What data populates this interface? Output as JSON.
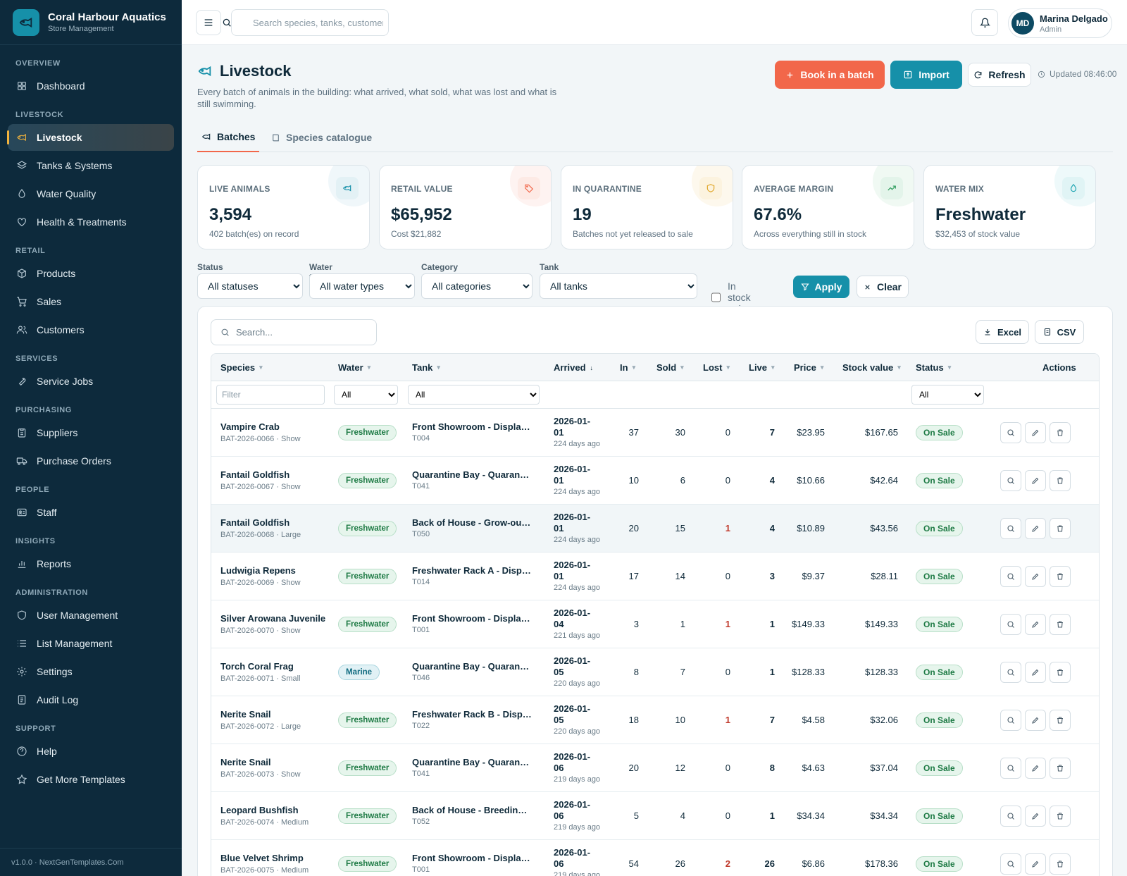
{
  "app": {
    "title": "Coral Harbour Aquatics",
    "subtitle": "Store Management",
    "version": "v1.0.0 · NextGenTemplates.Com"
  },
  "nav": {
    "sections": [
      {
        "label": "OVERVIEW",
        "items": [
          {
            "label": "Dashboard",
            "icon": "grid-icon"
          }
        ]
      },
      {
        "label": "LIVESTOCK",
        "items": [
          {
            "label": "Livestock",
            "icon": "fish-icon",
            "active": true
          },
          {
            "label": "Tanks & Systems",
            "icon": "layers-icon"
          },
          {
            "label": "Water Quality",
            "icon": "droplet-icon"
          },
          {
            "label": "Health & Treatments",
            "icon": "heart-icon"
          }
        ]
      },
      {
        "label": "RETAIL",
        "items": [
          {
            "label": "Products",
            "icon": "box-icon"
          },
          {
            "label": "Sales",
            "icon": "cart-icon"
          },
          {
            "label": "Customers",
            "icon": "users-icon"
          }
        ]
      },
      {
        "label": "SERVICES",
        "items": [
          {
            "label": "Service Jobs",
            "icon": "wrench-icon"
          }
        ]
      },
      {
        "label": "PURCHASING",
        "items": [
          {
            "label": "Suppliers",
            "icon": "clipboard-icon"
          },
          {
            "label": "Purchase Orders",
            "icon": "truck-icon"
          }
        ]
      },
      {
        "label": "PEOPLE",
        "items": [
          {
            "label": "Staff",
            "icon": "id-card-icon"
          }
        ]
      },
      {
        "label": "INSIGHTS",
        "items": [
          {
            "label": "Reports",
            "icon": "bar-chart-icon"
          }
        ]
      },
      {
        "label": "ADMINISTRATION",
        "items": [
          {
            "label": "User Management",
            "icon": "shield-icon"
          },
          {
            "label": "List Management",
            "icon": "list-icon"
          },
          {
            "label": "Settings",
            "icon": "gear-icon"
          },
          {
            "label": "Audit Log",
            "icon": "log-icon"
          }
        ]
      },
      {
        "label": "SUPPORT",
        "items": [
          {
            "label": "Help",
            "icon": "help-icon"
          },
          {
            "label": "Get More Templates",
            "icon": "star-icon"
          }
        ]
      }
    ]
  },
  "topbar": {
    "search_placeholder": "Search species, tanks, customers...",
    "user": {
      "initials": "MD",
      "name": "Marina Delgado",
      "role": "Admin"
    }
  },
  "page": {
    "title": "Livestock",
    "description": "Every batch of animals in the building: what arrived, what sold, what was lost and what is still swimming.",
    "book_label": "Book in a batch",
    "import_label": "Import",
    "refresh_label": "Refresh",
    "updated": "Updated 08:46:00"
  },
  "tabs": [
    {
      "label": "Batches",
      "active": true
    },
    {
      "label": "Species catalogue"
    }
  ],
  "kpis": [
    {
      "label": "LIVE ANIMALS",
      "value": "3,594",
      "sub": "402 batch(es) on record",
      "icon": "fish-icon",
      "color": "#1690a9",
      "bg": "#e3f1f5"
    },
    {
      "label": "RETAIL VALUE",
      "value": "$65,952",
      "sub": "Cost $21,882",
      "icon": "tag-icon",
      "color": "#f2674a",
      "bg": "#fdeae5"
    },
    {
      "label": "IN QUARANTINE",
      "value": "19",
      "sub": "Batches not yet released to sale",
      "icon": "shield-icon",
      "color": "#e0a526",
      "bg": "#fcf3df"
    },
    {
      "label": "AVERAGE MARGIN",
      "value": "67.6%",
      "sub": "Across everything still in stock",
      "icon": "trend-up-icon",
      "color": "#2a9a5a",
      "bg": "#e3f4ea"
    },
    {
      "label": "WATER MIX",
      "value": "Freshwater",
      "sub": "$32,453 of stock value",
      "icon": "droplet-icon",
      "color": "#1aa3b0",
      "bg": "#e0f4f5"
    }
  ],
  "filters": {
    "status": {
      "label": "Status",
      "value": "All statuses"
    },
    "water": {
      "label": "Water type",
      "value": "All water types"
    },
    "category": {
      "label": "Category",
      "value": "All categories"
    },
    "tank": {
      "label": "Tank",
      "value": "All tanks"
    },
    "in_stock_label": "In stock only",
    "apply_label": "Apply",
    "clear_label": "Clear"
  },
  "table": {
    "search_placeholder": "Search...",
    "excel_label": "Excel",
    "csv_label": "CSV",
    "columns": [
      "Species",
      "Water",
      "Tank",
      "Arrived",
      "In",
      "Sold",
      "Lost",
      "Live",
      "Price",
      "Stock value",
      "Status",
      "Actions"
    ],
    "filter_placeholder": "Filter",
    "filter_all": "All",
    "rows": [
      {
        "species": "Vampire Crab",
        "batch": "BAT-2026-0066 · Show",
        "water": "Freshwater",
        "tank": "Front Showroom - Display Tank",
        "tank_id": "T004",
        "arrived_a": "2026-01-",
        "arrived_b": "01",
        "ago": "224 days ago",
        "in": "37",
        "sold": "30",
        "lost": "0",
        "live": "7",
        "price": "$23.95",
        "value": "$167.65",
        "status": "On Sale"
      },
      {
        "species": "Fantail Goldfish",
        "batch": "BAT-2026-0067 · Show",
        "water": "Freshwater",
        "tank": "Quarantine Bay - Quarantine Tank",
        "tank_id": "T041",
        "arrived_a": "2026-01-",
        "arrived_b": "01",
        "ago": "224 days ago",
        "in": "10",
        "sold": "6",
        "lost": "0",
        "live": "4",
        "price": "$10.66",
        "value": "$42.64",
        "status": "On Sale"
      },
      {
        "species": "Fantail Goldfish",
        "batch": "BAT-2026-0068 · Large",
        "water": "Freshwater",
        "tank": "Back of House - Grow-out Tank",
        "tank_id": "T050",
        "arrived_a": "2026-01-",
        "arrived_b": "01",
        "ago": "224 days ago",
        "in": "20",
        "sold": "15",
        "lost": "1",
        "live": "4",
        "price": "$10.89",
        "value": "$43.56",
        "status": "On Sale"
      },
      {
        "species": "Ludwigia Repens",
        "batch": "BAT-2026-0069 · Show",
        "water": "Freshwater",
        "tank": "Freshwater Rack A - Display",
        "tank_id": "T014",
        "arrived_a": "2026-01-",
        "arrived_b": "01",
        "ago": "224 days ago",
        "in": "17",
        "sold": "14",
        "lost": "0",
        "live": "3",
        "price": "$9.37",
        "value": "$28.11",
        "status": "On Sale"
      },
      {
        "species": "Silver Arowana Juvenile",
        "batch": "BAT-2026-0070 · Show",
        "water": "Freshwater",
        "tank": "Front Showroom - Display Tank",
        "tank_id": "T001",
        "arrived_a": "2026-01-",
        "arrived_b": "04",
        "ago": "221 days ago",
        "in": "3",
        "sold": "1",
        "lost": "1",
        "live": "1",
        "price": "$149.33",
        "value": "$149.33",
        "status": "On Sale"
      },
      {
        "species": "Torch Coral Frag",
        "batch": "BAT-2026-0071 · Small",
        "water": "Marine",
        "tank": "Quarantine Bay - Quarantine Tank",
        "tank_id": "T046",
        "arrived_a": "2026-01-",
        "arrived_b": "05",
        "ago": "220 days ago",
        "in": "8",
        "sold": "7",
        "lost": "0",
        "live": "1",
        "price": "$128.33",
        "value": "$128.33",
        "status": "On Sale"
      },
      {
        "species": "Nerite Snail",
        "batch": "BAT-2026-0072 · Large",
        "water": "Freshwater",
        "tank": "Freshwater Rack B - Display",
        "tank_id": "T022",
        "arrived_a": "2026-01-",
        "arrived_b": "05",
        "ago": "220 days ago",
        "in": "18",
        "sold": "10",
        "lost": "1",
        "live": "7",
        "price": "$4.58",
        "value": "$32.06",
        "status": "On Sale"
      },
      {
        "species": "Nerite Snail",
        "batch": "BAT-2026-0073 · Show",
        "water": "Freshwater",
        "tank": "Quarantine Bay - Quarantine Tank",
        "tank_id": "T041",
        "arrived_a": "2026-01-",
        "arrived_b": "06",
        "ago": "219 days ago",
        "in": "20",
        "sold": "12",
        "lost": "0",
        "live": "8",
        "price": "$4.63",
        "value": "$37.04",
        "status": "On Sale"
      },
      {
        "species": "Leopard Bushfish",
        "batch": "BAT-2026-0074 · Medium",
        "water": "Freshwater",
        "tank": "Back of House - Breeding Tank",
        "tank_id": "T052",
        "arrived_a": "2026-01-",
        "arrived_b": "06",
        "ago": "219 days ago",
        "in": "5",
        "sold": "4",
        "lost": "0",
        "live": "1",
        "price": "$34.34",
        "value": "$34.34",
        "status": "On Sale"
      },
      {
        "species": "Blue Velvet Shrimp",
        "batch": "BAT-2026-0075 · Medium",
        "water": "Freshwater",
        "tank": "Front Showroom - Display Tank",
        "tank_id": "T001",
        "arrived_a": "2026-01-",
        "arrived_b": "06",
        "ago": "219 days ago",
        "in": "54",
        "sold": "26",
        "lost": "2",
        "live": "26",
        "price": "$6.86",
        "value": "$178.36",
        "status": "On Sale"
      }
    ]
  }
}
